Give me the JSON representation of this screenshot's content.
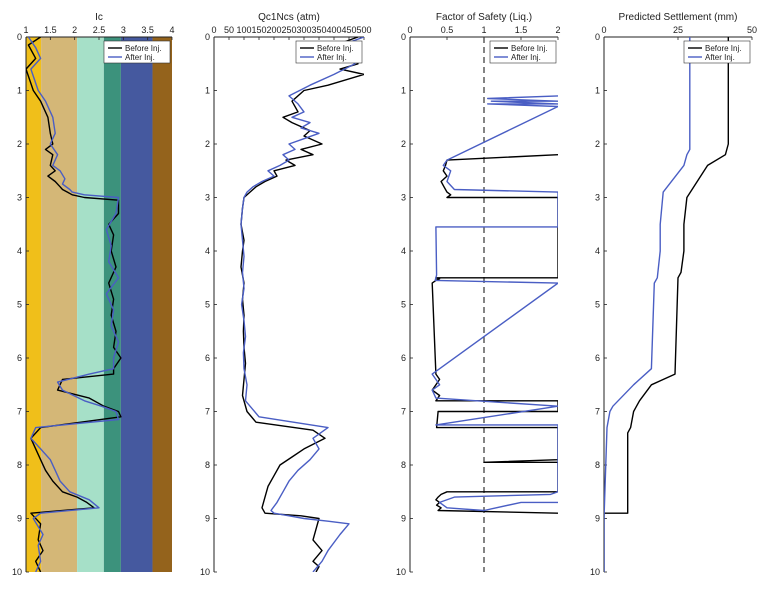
{
  "chart_data": [
    {
      "type": "line",
      "title": "Ic",
      "xlim": [
        1,
        4
      ],
      "ylim": [
        0,
        10
      ],
      "x_ticks": [
        "1",
        "1.5",
        "2",
        "2.5",
        "3",
        "3.5",
        "4"
      ],
      "y_ticks": [
        "0",
        "1",
        "2",
        "3",
        "4",
        "5",
        "6",
        "7",
        "8",
        "9",
        "10"
      ],
      "zones": [
        {
          "from": 1.0,
          "to": 1.31,
          "color": "#f0bf1a"
        },
        {
          "from": 1.31,
          "to": 2.05,
          "color": "#d4b777"
        },
        {
          "from": 2.05,
          "to": 2.6,
          "color": "#a6e0c8"
        },
        {
          "from": 2.6,
          "to": 2.95,
          "color": "#3c927c"
        },
        {
          "from": 2.95,
          "to": 3.6,
          "color": "#45599f"
        },
        {
          "from": 3.6,
          "to": 4.0,
          "color": "#94631c"
        }
      ],
      "legend": [
        "Before Inj.",
        "After Inj."
      ],
      "series": [
        {
          "name": "Before Inj.",
          "color": "#000000",
          "x": [
            1.3,
            1.05,
            1.2,
            1.0,
            1.15,
            1.3,
            1.45,
            1.5,
            1.55,
            1.4,
            1.55,
            1.5,
            1.6,
            1.45,
            1.6,
            1.7,
            1.75,
            1.85,
            1.95,
            2.2,
            2.9,
            2.9,
            2.7,
            2.8,
            2.75,
            2.85,
            2.7,
            2.8,
            2.75,
            2.85,
            2.8,
            2.95,
            2.8,
            2.8,
            1.75,
            1.65,
            2.3,
            2.6,
            2.9,
            2.95,
            1.3,
            1.1,
            1.2,
            1.3,
            1.4,
            1.55,
            1.75,
            2.05,
            2.25,
            2.4,
            1.1,
            1.3,
            1.25,
            1.35,
            1.2,
            1.3
          ],
          "y": [
            0,
            0.15,
            0.4,
            0.6,
            1.0,
            1.2,
            1.5,
            1.8,
            2.0,
            2.1,
            2.2,
            2.4,
            2.5,
            2.6,
            2.7,
            2.8,
            2.85,
            2.9,
            2.95,
            3.0,
            3.05,
            3.3,
            3.5,
            3.7,
            4.0,
            4.3,
            4.6,
            4.9,
            5.2,
            5.5,
            5.8,
            6.0,
            6.2,
            6.3,
            6.4,
            6.6,
            6.75,
            6.9,
            7.0,
            7.1,
            7.3,
            7.5,
            7.7,
            7.9,
            8.1,
            8.3,
            8.5,
            8.6,
            8.7,
            8.8,
            8.9,
            9.1,
            9.4,
            9.6,
            9.8,
            10
          ]
        },
        {
          "name": "After Inj.",
          "color": "#4a5ec4",
          "x": [
            1.05,
            1.2,
            1.3,
            1.1,
            1.25,
            1.4,
            1.55,
            1.6,
            1.5,
            1.65,
            1.55,
            1.7,
            1.8,
            1.75,
            1.9,
            1.95,
            2.2,
            2.9,
            2.85,
            2.65,
            2.75,
            2.7,
            2.9,
            2.65,
            2.8,
            2.75,
            2.9,
            2.8,
            2.8,
            2.3,
            1.65,
            1.75,
            2.2,
            2.55,
            2.85,
            2.9,
            1.2,
            1.1,
            1.3,
            1.5,
            1.6,
            1.7,
            1.9,
            2.3,
            2.5,
            1.3,
            1.15,
            1.35,
            1.25,
            1.3,
            1.2
          ],
          "y": [
            0,
            0.2,
            0.4,
            0.6,
            1.0,
            1.2,
            1.5,
            1.8,
            2.0,
            2.2,
            2.4,
            2.5,
            2.65,
            2.75,
            2.85,
            2.9,
            2.95,
            3.0,
            3.3,
            3.6,
            3.9,
            4.2,
            4.5,
            4.8,
            5.1,
            5.4,
            5.7,
            6.0,
            6.2,
            6.3,
            6.45,
            6.6,
            6.8,
            6.9,
            7.0,
            7.15,
            7.3,
            7.5,
            7.7,
            7.9,
            8.1,
            8.3,
            8.5,
            8.65,
            8.8,
            8.9,
            9.0,
            9.3,
            9.5,
            9.8,
            10
          ]
        }
      ]
    },
    {
      "type": "line",
      "title": "Qc1Ncs (atm)",
      "xlim": [
        0,
        500
      ],
      "ylim": [
        0,
        10
      ],
      "x_ticks": [
        "0",
        "50",
        "100",
        "150",
        "200",
        "250",
        "300",
        "350",
        "400",
        "450",
        "500"
      ],
      "y_ticks": [
        "0",
        "1",
        "2",
        "3",
        "4",
        "5",
        "6",
        "7",
        "8",
        "9",
        "10"
      ],
      "legend": [
        "Before Inj.",
        "After Inj."
      ],
      "series": [
        {
          "name": "Before Inj.",
          "color": "#000000",
          "x": [
            480,
            430,
            460,
            440,
            470,
            480,
            420,
            500,
            380,
            300,
            260,
            280,
            230,
            260,
            320,
            300,
            360,
            290,
            330,
            240,
            270,
            200,
            210,
            170,
            140,
            120,
            100,
            95,
            90,
            100,
            95,
            90,
            100,
            95,
            100,
            98,
            100,
            105,
            100,
            95,
            110,
            140,
            330,
            370,
            300,
            260,
            220,
            200,
            180,
            170,
            160,
            170,
            290,
            350,
            340,
            330,
            360,
            330,
            350,
            340
          ],
          "y": [
            0,
            0.1,
            0.2,
            0.3,
            0.4,
            0.5,
            0.6,
            0.7,
            0.9,
            1.0,
            1.2,
            1.4,
            1.5,
            1.6,
            1.75,
            1.85,
            2.0,
            2.1,
            2.2,
            2.3,
            2.4,
            2.5,
            2.6,
            2.7,
            2.8,
            2.9,
            3.0,
            3.2,
            3.5,
            3.8,
            4.0,
            4.3,
            4.6,
            4.9,
            5.2,
            5.5,
            5.8,
            6.1,
            6.4,
            6.7,
            7.0,
            7.2,
            7.35,
            7.5,
            7.7,
            7.85,
            8.0,
            8.2,
            8.4,
            8.6,
            8.8,
            8.9,
            8.95,
            9.0,
            9.2,
            9.4,
            9.6,
            9.8,
            9.9,
            10
          ]
        },
        {
          "name": "After Inj.",
          "color": "#4a5ec4",
          "x": [
            500,
            450,
            480,
            430,
            470,
            400,
            320,
            250,
            280,
            300,
            260,
            320,
            290,
            350,
            300,
            250,
            270,
            230,
            250,
            220,
            180,
            200,
            160,
            130,
            110,
            100,
            95,
            90,
            95,
            100,
            95,
            100,
            92,
            100,
            105,
            98,
            100,
            110,
            105,
            150,
            380,
            330,
            350,
            320,
            280,
            250,
            230,
            210,
            190,
            200,
            250,
            300,
            380,
            450,
            420,
            380,
            360,
            330
          ],
          "y": [
            0,
            0.1,
            0.2,
            0.3,
            0.5,
            0.7,
            0.9,
            1.1,
            1.25,
            1.4,
            1.5,
            1.6,
            1.7,
            1.8,
            1.9,
            2.0,
            2.1,
            2.2,
            2.3,
            2.4,
            2.5,
            2.6,
            2.7,
            2.8,
            2.9,
            3.0,
            3.2,
            3.5,
            3.8,
            4.1,
            4.4,
            4.7,
            5.0,
            5.3,
            5.6,
            5.9,
            6.2,
            6.5,
            6.8,
            7.1,
            7.3,
            7.5,
            7.7,
            7.9,
            8.1,
            8.3,
            8.5,
            8.7,
            8.85,
            8.9,
            8.95,
            9.0,
            9.05,
            9.1,
            9.3,
            9.6,
            9.8,
            10
          ]
        }
      ]
    },
    {
      "type": "line",
      "title": "Factor of Safety (Liq.)",
      "xlim": [
        0,
        2
      ],
      "ylim": [
        0,
        10
      ],
      "x_ticks": [
        "0",
        "0.5",
        "1",
        "1.5",
        "2"
      ],
      "y_ticks": [
        "0",
        "1",
        "2",
        "3",
        "4",
        "5",
        "6",
        "7",
        "8",
        "9",
        "10"
      ],
      "reference_line": 1,
      "legend": [
        "Before Inj.",
        "After Inj."
      ],
      "series": [
        {
          "name": "Before Inj.",
          "color": "#000000",
          "x": [
            2,
            2,
            0.5,
            0.48,
            0.45,
            0.5,
            0.42,
            0.46,
            0.5,
            0.55,
            0.5,
            2,
            2,
            2,
            0.35,
            0.4,
            0.35,
            0.3,
            0.35,
            0.4,
            0.35,
            0.3,
            0.4,
            0.35,
            2,
            2,
            0.38,
            0.36,
            2,
            2,
            2,
            1,
            2,
            2,
            0.5,
            0.42,
            0.38,
            0.35,
            0.4,
            0.36,
            0.42,
            0.38,
            2,
            2
          ],
          "y": [
            2.2,
            2.2,
            2.3,
            2.4,
            2.5,
            2.6,
            2.7,
            2.8,
            2.9,
            2.95,
            3.0,
            3.0,
            3.58,
            4.5,
            4.5,
            4.52,
            4.55,
            4.6,
            6.3,
            6.4,
            6.5,
            6.6,
            6.7,
            6.8,
            6.8,
            7.0,
            7.0,
            7.3,
            7.3,
            7.3,
            7.9,
            7.95,
            7.95,
            8.5,
            8.5,
            8.55,
            8.6,
            8.65,
            8.7,
            8.75,
            8.8,
            8.85,
            8.9,
            8.9
          ]
        },
        {
          "name": "After Inj.",
          "color": "#4a5ec4",
          "x": [
            2,
            1.05,
            2,
            1.1,
            2,
            1.05,
            2,
            0.5,
            0.45,
            0.55,
            0.5,
            0.6,
            2,
            2,
            0.35,
            0.36,
            0.34,
            2,
            0.3,
            0.35,
            0.4,
            0.3,
            0.35,
            2,
            2,
            0.35,
            2,
            2,
            2,
            1.9,
            0.6,
            0.4,
            0.5,
            1.0,
            1.5,
            2
          ],
          "y": [
            1.1,
            1.15,
            1.2,
            1.2,
            1.25,
            1.25,
            1.3,
            2.3,
            2.4,
            2.5,
            2.7,
            2.85,
            2.9,
            3.55,
            3.55,
            4.45,
            4.55,
            4.6,
            6.3,
            6.4,
            6.5,
            6.6,
            6.75,
            6.9,
            6.9,
            7.25,
            7.25,
            8.3,
            8.5,
            8.55,
            8.6,
            8.7,
            8.8,
            8.85,
            8.7,
            8.7
          ]
        }
      ]
    },
    {
      "type": "line",
      "title": "Predicted Settlement (mm)",
      "xlim": [
        0,
        50
      ],
      "ylim": [
        0,
        10
      ],
      "x_ticks": [
        "0",
        "25",
        "50"
      ],
      "y_ticks": [
        "0",
        "1",
        "2",
        "3",
        "4",
        "5",
        "6",
        "7",
        "8",
        "9",
        "10"
      ],
      "legend": [
        "Before Inj.",
        "After Inj."
      ],
      "series": [
        {
          "name": "Before Inj.",
          "color": "#000000",
          "x": [
            42,
            42,
            41,
            35,
            28,
            27,
            27,
            26,
            25,
            24,
            16,
            12,
            10,
            9,
            8,
            8,
            0,
            0
          ],
          "y": [
            0,
            2.0,
            2.2,
            2.4,
            3.0,
            3.5,
            4.0,
            4.4,
            4.5,
            6.3,
            6.5,
            6.8,
            7.0,
            7.3,
            7.4,
            8.9,
            8.9,
            10
          ]
        },
        {
          "name": "After Inj.",
          "color": "#4a5ec4",
          "x": [
            29,
            29,
            28,
            27,
            20,
            19,
            19,
            18,
            17,
            16,
            10,
            3,
            2,
            1,
            0,
            0
          ],
          "y": [
            0,
            2.1,
            2.2,
            2.4,
            2.9,
            3.5,
            4.0,
            4.5,
            4.6,
            6.2,
            6.5,
            6.9,
            7.0,
            7.3,
            9.0,
            10
          ]
        }
      ]
    }
  ]
}
